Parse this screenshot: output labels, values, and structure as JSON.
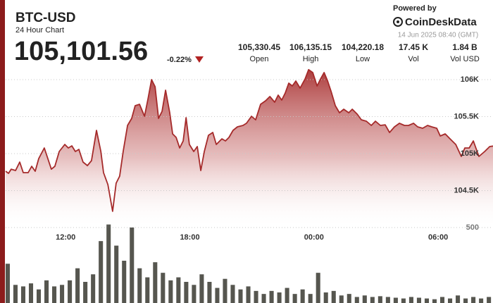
{
  "header": {
    "symbol": "BTC-USD",
    "subtitle": "24 Hour Chart",
    "price": "105,101.56",
    "change": "-0.22%",
    "powered_by": "Powered by",
    "brand": "CoinDeskData",
    "timestamp": "14 Jun 2025 08:40 (GMT)"
  },
  "stats": [
    {
      "value": "105,330.45",
      "label": "Open"
    },
    {
      "value": "106,135.15",
      "label": "High"
    },
    {
      "value": "104,220.18",
      "label": "Low"
    },
    {
      "value": "17.45 K",
      "label": "Vol"
    },
    {
      "value": "1.84 B",
      "label": "Vol USD"
    }
  ],
  "chart_data": [
    {
      "type": "area",
      "color": "#a52a2a",
      "grid": true,
      "xlim": [
        9.1,
        32.65
      ],
      "ylim": [
        104200,
        106200
      ],
      "xticks": [
        {
          "value": 12,
          "label": "12:00"
        },
        {
          "value": 18,
          "label": "18:00"
        },
        {
          "value": 24,
          "label": "00:00"
        },
        {
          "value": 30,
          "label": "06:00"
        }
      ],
      "yticks": [
        {
          "value": 104500,
          "label": "104.5K"
        },
        {
          "value": 105000,
          "label": "105K"
        },
        {
          "value": 105500,
          "label": "105.5K"
        },
        {
          "value": 106000,
          "label": "106K"
        }
      ],
      "x": [
        9.1,
        9.24,
        9.37,
        9.58,
        9.78,
        9.95,
        10.19,
        10.36,
        10.53,
        10.7,
        10.97,
        11.14,
        11.31,
        11.48,
        11.69,
        11.96,
        12.13,
        12.3,
        12.47,
        12.64,
        12.84,
        13.05,
        13.25,
        13.49,
        13.7,
        13.83,
        14.04,
        14.27,
        14.44,
        14.61,
        14.78,
        14.99,
        15.19,
        15.36,
        15.57,
        15.81,
        15.98,
        16.15,
        16.32,
        16.49,
        16.66,
        16.83,
        17.03,
        17.17,
        17.34,
        17.51,
        17.68,
        17.82,
        17.98,
        18.19,
        18.36,
        18.53,
        18.7,
        18.9,
        19.11,
        19.28,
        19.55,
        19.72,
        19.89,
        20.09,
        20.3,
        20.57,
        20.74,
        20.98,
        21.18,
        21.42,
        21.66,
        21.87,
        22.1,
        22.27,
        22.44,
        22.61,
        22.78,
        22.95,
        23.12,
        23.33,
        23.57,
        23.74,
        23.94,
        24.15,
        24.32,
        24.49,
        24.66,
        24.83,
        25.03,
        25.23,
        25.44,
        25.68,
        25.85,
        26.09,
        26.29,
        26.53,
        26.77,
        26.97,
        27.21,
        27.44,
        27.65,
        27.89,
        28.13,
        28.37,
        28.57,
        28.81,
        29.01,
        29.25,
        29.49,
        29.69,
        29.93,
        30.1,
        30.34,
        30.61,
        30.85,
        31.12,
        31.29,
        31.5,
        31.7,
        31.97,
        32.25,
        32.49,
        32.65
      ],
      "values": [
        104762,
        104733,
        104790,
        104771,
        104886,
        104743,
        104743,
        104829,
        104762,
        104933,
        105076,
        104933,
        104790,
        104829,
        105029,
        105124,
        105076,
        105105,
        105029,
        105057,
        104886,
        104838,
        104905,
        105314,
        105029,
        104743,
        104581,
        104220,
        104600,
        104695,
        105029,
        105381,
        105476,
        105648,
        105667,
        105505,
        105743,
        106000,
        105905,
        105476,
        105571,
        105857,
        105552,
        105267,
        105219,
        105076,
        105171,
        105486,
        105124,
        105029,
        105095,
        104771,
        105029,
        105248,
        105286,
        105124,
        105200,
        105171,
        105219,
        105314,
        105362,
        105381,
        105410,
        105505,
        105457,
        105667,
        105714,
        105771,
        105695,
        105790,
        105724,
        105819,
        105952,
        105914,
        105981,
        105886,
        106010,
        106135,
        106095,
        105914,
        106010,
        106095,
        105981,
        105838,
        105648,
        105552,
        105600,
        105552,
        105600,
        105533,
        105457,
        105438,
        105381,
        105438,
        105381,
        105390,
        105286,
        105362,
        105410,
        105381,
        105381,
        105410,
        105362,
        105343,
        105381,
        105362,
        105343,
        105238,
        105267,
        105190,
        105124,
        104962,
        105076,
        105076,
        105171,
        104962,
        105029,
        105095,
        105101.56
      ]
    },
    {
      "type": "bar",
      "color": "#56564f",
      "grid": true,
      "xlim": [
        9.1,
        32.65
      ],
      "ylim": [
        0,
        560
      ],
      "yticks": [
        500
      ],
      "x": [
        9.2,
        9.575,
        9.95,
        10.325,
        10.7,
        11.075,
        11.45,
        11.825,
        12.2,
        12.575,
        12.95,
        13.325,
        13.7,
        14.075,
        14.45,
        14.825,
        15.2,
        15.575,
        15.95,
        16.325,
        16.7,
        17.075,
        17.45,
        17.825,
        18.2,
        18.575,
        18.95,
        19.325,
        19.7,
        20.075,
        20.45,
        20.825,
        21.2,
        21.575,
        21.95,
        22.325,
        22.7,
        23.075,
        23.45,
        23.825,
        24.2,
        24.575,
        24.95,
        25.325,
        25.7,
        26.075,
        26.45,
        26.825,
        27.2,
        27.575,
        27.95,
        28.325,
        28.7,
        29.075,
        29.45,
        29.825,
        30.2,
        30.575,
        30.95,
        31.325,
        31.7,
        32.075,
        32.45
      ],
      "values": [
        260,
        120,
        110,
        130,
        90,
        150,
        110,
        120,
        150,
        230,
        140,
        190,
        410,
        520,
        380,
        280,
        500,
        230,
        170,
        270,
        200,
        150,
        170,
        140,
        120,
        190,
        140,
        100,
        160,
        120,
        90,
        110,
        80,
        60,
        80,
        70,
        100,
        60,
        90,
        60,
        200,
        70,
        80,
        50,
        60,
        40,
        50,
        40,
        45,
        40,
        35,
        30,
        40,
        35,
        30,
        25,
        40,
        30,
        50,
        30,
        40,
        30,
        40
      ]
    }
  ]
}
